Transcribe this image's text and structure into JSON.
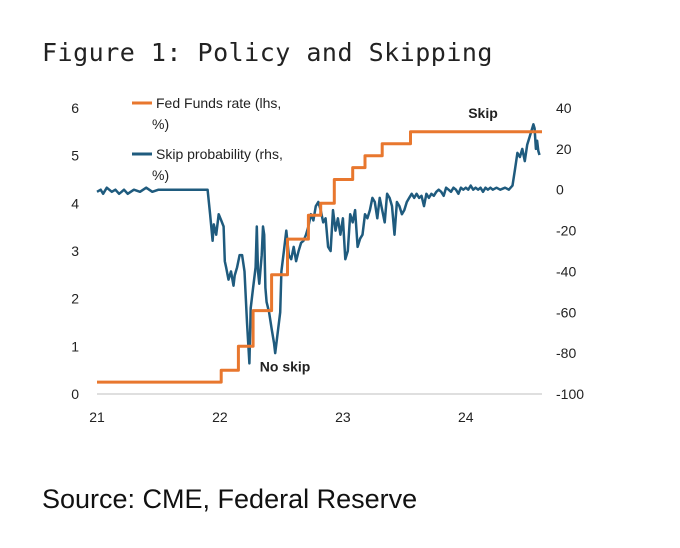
{
  "title": "Figure 1: Policy and Skipping",
  "source": "Source: CME, Federal Reserve",
  "chart_data": {
    "type": "line",
    "x_ticks": [
      {
        "label": "21",
        "value": 21
      },
      {
        "label": "22",
        "value": 22
      },
      {
        "label": "23",
        "value": 23
      },
      {
        "label": "24",
        "value": 24
      }
    ],
    "xlim": [
      21,
      24.62
    ],
    "y_left": {
      "ticks": [
        "0",
        "1",
        "2",
        "3",
        "4",
        "5",
        "6"
      ],
      "lim": [
        0,
        6
      ]
    },
    "y_right": {
      "ticks": [
        "-100",
        "-80",
        "-60",
        "-40",
        "-20",
        "0",
        "20",
        "40"
      ],
      "lim": [
        -100,
        40
      ]
    },
    "annotations": [
      {
        "text": "Skip",
        "x": 24.14,
        "y_right": 35
      },
      {
        "text": "No skip",
        "x": 22.53,
        "y_right": -89
      }
    ],
    "colors": {
      "fed": "#e8772e",
      "skip": "#1f5b7e",
      "axis_text": "#222222"
    },
    "series": [
      {
        "name": "Fed Funds rate (lhs, %)",
        "axis": "left",
        "color": "#e8772e",
        "step": true,
        "points": [
          [
            21.0,
            0.25
          ],
          [
            22.0,
            0.25
          ],
          [
            22.01,
            0.5
          ],
          [
            22.15,
            1.0
          ],
          [
            22.27,
            1.75
          ],
          [
            22.42,
            2.5
          ],
          [
            22.55,
            3.25
          ],
          [
            22.62,
            3.25
          ],
          [
            22.72,
            3.75
          ],
          [
            22.82,
            4.0
          ],
          [
            22.93,
            4.5
          ],
          [
            23.08,
            4.75
          ],
          [
            23.18,
            5.0
          ],
          [
            23.32,
            5.25
          ],
          [
            23.42,
            5.25
          ],
          [
            23.55,
            5.5
          ],
          [
            23.8,
            5.5
          ],
          [
            24.3,
            5.5
          ],
          [
            24.62,
            5.5
          ]
        ]
      },
      {
        "name": "Skip probability (rhs, %)",
        "axis": "right",
        "color": "#1f5b7e",
        "step": false,
        "points": [
          [
            21.0,
            -1
          ],
          [
            21.03,
            0
          ],
          [
            21.05,
            -2
          ],
          [
            21.08,
            1
          ],
          [
            21.12,
            -1
          ],
          [
            21.15,
            0
          ],
          [
            21.18,
            -2
          ],
          [
            21.2,
            -1
          ],
          [
            21.22,
            0
          ],
          [
            21.25,
            -2
          ],
          [
            21.3,
            0
          ],
          [
            21.35,
            -1
          ],
          [
            21.4,
            1
          ],
          [
            21.45,
            -1
          ],
          [
            21.5,
            0
          ],
          [
            21.55,
            0
          ],
          [
            21.6,
            0
          ],
          [
            21.65,
            0
          ],
          [
            21.7,
            0
          ],
          [
            21.75,
            0
          ],
          [
            21.8,
            0
          ],
          [
            21.85,
            0
          ],
          [
            21.9,
            0
          ],
          [
            21.92,
            -12
          ],
          [
            21.94,
            -25
          ],
          [
            21.95,
            -17
          ],
          [
            21.97,
            -22
          ],
          [
            21.99,
            -12
          ],
          [
            22.01,
            -15
          ],
          [
            22.03,
            -18
          ],
          [
            22.04,
            -35
          ],
          [
            22.05,
            -38
          ],
          [
            22.07,
            -44
          ],
          [
            22.09,
            -40
          ],
          [
            22.11,
            -47
          ],
          [
            22.12,
            -42
          ],
          [
            22.14,
            -38
          ],
          [
            22.16,
            -32
          ],
          [
            22.18,
            -32
          ],
          [
            22.2,
            -40
          ],
          [
            22.22,
            -65
          ],
          [
            22.24,
            -85
          ],
          [
            22.25,
            -58
          ],
          [
            22.27,
            -48
          ],
          [
            22.29,
            -38
          ],
          [
            22.3,
            -18
          ],
          [
            22.31,
            -40
          ],
          [
            22.32,
            -46
          ],
          [
            22.34,
            -32
          ],
          [
            22.35,
            -18
          ],
          [
            22.36,
            -22
          ],
          [
            22.37,
            -48
          ],
          [
            22.38,
            -55
          ],
          [
            22.4,
            -60
          ],
          [
            22.42,
            -68
          ],
          [
            22.44,
            -75
          ],
          [
            22.45,
            -80
          ],
          [
            22.47,
            -70
          ],
          [
            22.49,
            -60
          ],
          [
            22.5,
            -40
          ],
          [
            22.52,
            -30
          ],
          [
            22.54,
            -20
          ],
          [
            22.56,
            -32
          ],
          [
            22.58,
            -34
          ],
          [
            22.6,
            -28
          ],
          [
            22.62,
            -35
          ],
          [
            22.64,
            -30
          ],
          [
            22.66,
            -26
          ],
          [
            22.68,
            -25
          ],
          [
            22.7,
            -22
          ],
          [
            22.72,
            -18
          ],
          [
            22.74,
            -12
          ],
          [
            22.76,
            -15
          ],
          [
            22.78,
            -8
          ],
          [
            22.8,
            -6
          ],
          [
            22.82,
            -10
          ],
          [
            22.84,
            -16
          ],
          [
            22.86,
            -14
          ],
          [
            22.88,
            -28
          ],
          [
            22.9,
            -30
          ],
          [
            22.92,
            -10
          ],
          [
            22.94,
            -20
          ],
          [
            22.96,
            -14
          ],
          [
            22.98,
            -22
          ],
          [
            23.0,
            -14
          ],
          [
            23.02,
            -34
          ],
          [
            23.04,
            -30
          ],
          [
            23.06,
            -12
          ],
          [
            23.08,
            -16
          ],
          [
            23.1,
            -10
          ],
          [
            23.12,
            -28
          ],
          [
            23.14,
            -24
          ],
          [
            23.16,
            -22
          ],
          [
            23.18,
            -12
          ],
          [
            23.2,
            -14
          ],
          [
            23.22,
            -10
          ],
          [
            23.24,
            -4
          ],
          [
            23.26,
            -6
          ],
          [
            23.28,
            -14
          ],
          [
            23.3,
            -4
          ],
          [
            23.32,
            -10
          ],
          [
            23.34,
            -16
          ],
          [
            23.36,
            -2
          ],
          [
            23.38,
            -4
          ],
          [
            23.4,
            -8
          ],
          [
            23.42,
            -22
          ],
          [
            23.44,
            -6
          ],
          [
            23.46,
            -8
          ],
          [
            23.48,
            -12
          ],
          [
            23.5,
            -10
          ],
          [
            23.52,
            -6
          ],
          [
            23.54,
            -4
          ],
          [
            23.56,
            -2
          ],
          [
            23.58,
            -4
          ],
          [
            23.6,
            -2
          ],
          [
            23.62,
            -4
          ],
          [
            23.64,
            -3
          ],
          [
            23.66,
            -8
          ],
          [
            23.68,
            -2
          ],
          [
            23.7,
            -4
          ],
          [
            23.72,
            -2
          ],
          [
            23.74,
            -3
          ],
          [
            23.76,
            -1
          ],
          [
            23.78,
            0
          ],
          [
            23.8,
            -1
          ],
          [
            23.82,
            -3
          ],
          [
            23.84,
            1
          ],
          [
            23.86,
            0
          ],
          [
            23.88,
            -1
          ],
          [
            23.9,
            1
          ],
          [
            23.92,
            0
          ],
          [
            23.94,
            -2
          ],
          [
            23.96,
            1
          ],
          [
            23.98,
            0
          ],
          [
            24.0,
            1
          ],
          [
            24.02,
            0
          ],
          [
            24.04,
            2
          ],
          [
            24.06,
            0
          ],
          [
            24.08,
            1
          ],
          [
            24.1,
            0
          ],
          [
            24.12,
            1
          ],
          [
            24.14,
            -1
          ],
          [
            24.16,
            1
          ],
          [
            24.18,
            0
          ],
          [
            24.2,
            1
          ],
          [
            24.22,
            0
          ],
          [
            24.25,
            1
          ],
          [
            24.28,
            0
          ],
          [
            24.32,
            1
          ],
          [
            24.35,
            0
          ],
          [
            24.38,
            2
          ],
          [
            24.4,
            10
          ],
          [
            24.42,
            18
          ],
          [
            24.44,
            16
          ],
          [
            24.46,
            20
          ],
          [
            24.48,
            14
          ],
          [
            24.5,
            22
          ],
          [
            24.52,
            26
          ],
          [
            24.54,
            30
          ],
          [
            24.55,
            32
          ],
          [
            24.56,
            30
          ],
          [
            24.57,
            20
          ],
          [
            24.58,
            24
          ],
          [
            24.59,
            19
          ],
          [
            24.6,
            17
          ]
        ]
      }
    ]
  }
}
